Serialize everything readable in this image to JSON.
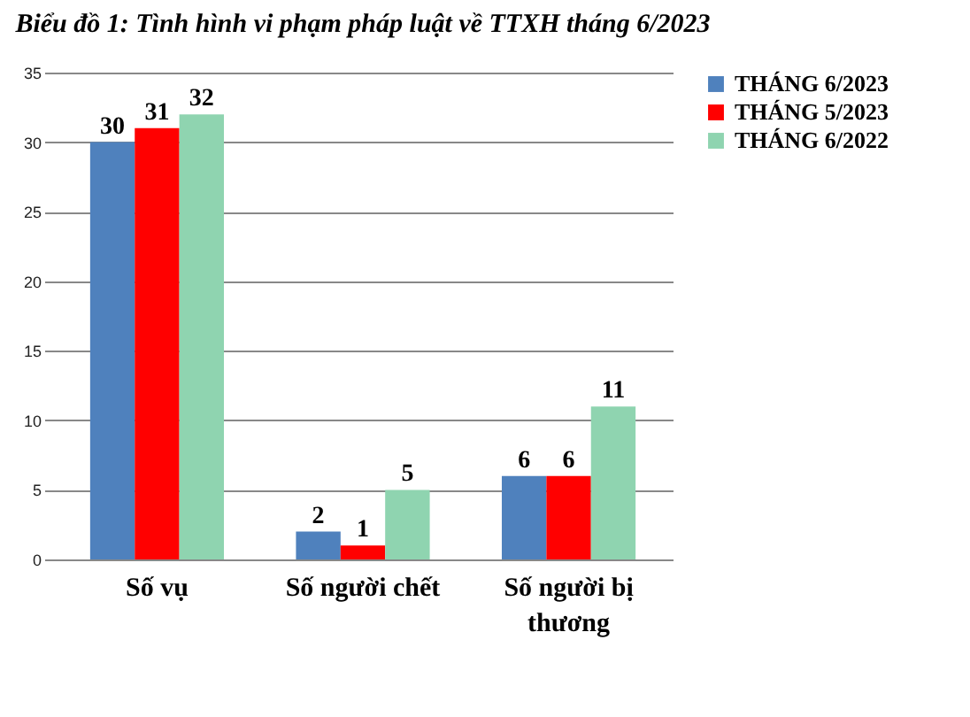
{
  "chart_data": {
    "type": "bar",
    "title": "Biểu đồ 1: Tình hình vi phạm pháp luật về TTXH tháng 6/2023",
    "categories": [
      "Số vụ",
      "Số người chết",
      "Số người bị thương"
    ],
    "series": [
      {
        "name": "THÁNG 6/2023",
        "color": "#4f81bd",
        "values": [
          30,
          2,
          6
        ]
      },
      {
        "name": "THÁNG 5/2023",
        "color": "#ff0000",
        "values": [
          31,
          1,
          6
        ]
      },
      {
        "name": "THÁNG 6/2022",
        "color": "#8fd4b0",
        "values": [
          32,
          5,
          11
        ]
      }
    ],
    "ylim": [
      0,
      35
    ],
    "yticks": [
      0,
      5,
      10,
      15,
      20,
      25,
      30,
      35
    ],
    "grid": "y",
    "legend": "right",
    "data_labels": true
  }
}
